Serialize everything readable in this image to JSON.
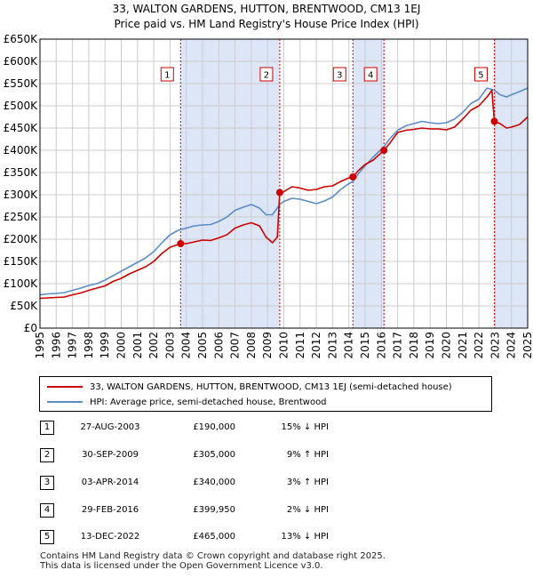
{
  "title_line1": "33, WALTON GARDENS, HUTTON, BRENTWOOD, CM13 1EJ",
  "title_line2": "Price paid vs. HM Land Registry's House Price Index (HPI)",
  "colors": {
    "property": "#cc0000",
    "hpi": "#5b8cc8",
    "shade": "#dde6f6",
    "grid": "#cccccc",
    "vline": "#cc0000"
  },
  "chart_data": {
    "type": "line",
    "title": "Price paid vs. HM Land Registry's House Price Index (HPI)",
    "xlim": [
      1995,
      2025
    ],
    "ylim": [
      0,
      650000
    ],
    "y_ticks": [
      {
        "value": 0,
        "label": "£0"
      },
      {
        "value": 50000,
        "label": "£50K"
      },
      {
        "value": 100000,
        "label": "£100K"
      },
      {
        "value": 150000,
        "label": "£150K"
      },
      {
        "value": 200000,
        "label": "£200K"
      },
      {
        "value": 250000,
        "label": "£250K"
      },
      {
        "value": 300000,
        "label": "£300K"
      },
      {
        "value": 350000,
        "label": "£350K"
      },
      {
        "value": 400000,
        "label": "£400K"
      },
      {
        "value": 450000,
        "label": "£450K"
      },
      {
        "value": 500000,
        "label": "£500K"
      },
      {
        "value": 550000,
        "label": "£550K"
      },
      {
        "value": 600000,
        "label": "£600K"
      },
      {
        "value": 650000,
        "label": "£650K"
      }
    ],
    "x_ticks": [
      1995,
      1996,
      1997,
      1998,
      1999,
      2000,
      2001,
      2002,
      2003,
      2004,
      2005,
      2006,
      2007,
      2008,
      2009,
      2010,
      2011,
      2012,
      2013,
      2014,
      2015,
      2016,
      2017,
      2018,
      2019,
      2020,
      2021,
      2022,
      2023,
      2024,
      2025
    ],
    "shaded_ranges": [
      [
        2003.65,
        2009.75
      ],
      [
        2014.25,
        2016.16
      ],
      [
        2022.95,
        2025
      ]
    ],
    "series": [
      {
        "name": "33, WALTON GARDENS, HUTTON, BRENTWOOD, CM13 1EJ (semi-detached house)",
        "color": "#cc0000",
        "points": [
          [
            1995.0,
            67000
          ],
          [
            1995.5,
            68000
          ],
          [
            1996.0,
            69000
          ],
          [
            1996.5,
            70000
          ],
          [
            1997.0,
            75000
          ],
          [
            1997.5,
            79000
          ],
          [
            1998.0,
            85000
          ],
          [
            1998.5,
            90000
          ],
          [
            1999.0,
            95000
          ],
          [
            1999.5,
            105000
          ],
          [
            2000.0,
            112000
          ],
          [
            2000.5,
            122000
          ],
          [
            2001.0,
            130000
          ],
          [
            2001.5,
            138000
          ],
          [
            2002.0,
            150000
          ],
          [
            2002.5,
            168000
          ],
          [
            2003.0,
            182000
          ],
          [
            2003.65,
            190000
          ],
          [
            2004.0,
            190000
          ],
          [
            2004.5,
            194000
          ],
          [
            2005.0,
            198000
          ],
          [
            2005.5,
            197000
          ],
          [
            2006.0,
            203000
          ],
          [
            2006.5,
            210000
          ],
          [
            2007.0,
            225000
          ],
          [
            2007.5,
            232000
          ],
          [
            2008.0,
            237000
          ],
          [
            2008.5,
            230000
          ],
          [
            2008.9,
            205000
          ],
          [
            2009.3,
            192000
          ],
          [
            2009.6,
            205000
          ],
          [
            2009.75,
            305000
          ],
          [
            2010.0,
            307000
          ],
          [
            2010.5,
            318000
          ],
          [
            2011.0,
            315000
          ],
          [
            2011.5,
            310000
          ],
          [
            2012.0,
            312000
          ],
          [
            2012.5,
            318000
          ],
          [
            2013.0,
            320000
          ],
          [
            2013.5,
            330000
          ],
          [
            2014.0,
            338000
          ],
          [
            2014.25,
            340000
          ],
          [
            2014.6,
            355000
          ],
          [
            2015.0,
            368000
          ],
          [
            2015.5,
            378000
          ],
          [
            2016.16,
            399950
          ],
          [
            2016.5,
            415000
          ],
          [
            2017.0,
            440000
          ],
          [
            2017.5,
            445000
          ],
          [
            2018.0,
            447000
          ],
          [
            2018.5,
            450000
          ],
          [
            2019.0,
            448000
          ],
          [
            2019.5,
            448000
          ],
          [
            2020.0,
            446000
          ],
          [
            2020.5,
            452000
          ],
          [
            2021.0,
            470000
          ],
          [
            2021.5,
            490000
          ],
          [
            2022.0,
            500000
          ],
          [
            2022.5,
            520000
          ],
          [
            2022.8,
            535000
          ],
          [
            2022.95,
            465000
          ],
          [
            2023.3,
            460000
          ],
          [
            2023.7,
            450000
          ],
          [
            2024.0,
            452000
          ],
          [
            2024.5,
            458000
          ],
          [
            2025.0,
            475000
          ]
        ]
      },
      {
        "name": "HPI: Average price, semi-detached house, Brentwood",
        "color": "#5b8cc8",
        "points": [
          [
            1995.0,
            75000
          ],
          [
            1995.5,
            77000
          ],
          [
            1996.0,
            78000
          ],
          [
            1996.5,
            80000
          ],
          [
            1997.0,
            85000
          ],
          [
            1997.5,
            90000
          ],
          [
            1998.0,
            96000
          ],
          [
            1998.5,
            100000
          ],
          [
            1999.0,
            108000
          ],
          [
            1999.5,
            118000
          ],
          [
            2000.0,
            128000
          ],
          [
            2000.5,
            138000
          ],
          [
            2001.0,
            148000
          ],
          [
            2001.5,
            158000
          ],
          [
            2002.0,
            172000
          ],
          [
            2002.5,
            192000
          ],
          [
            2003.0,
            210000
          ],
          [
            2003.5,
            220000
          ],
          [
            2004.0,
            225000
          ],
          [
            2004.5,
            230000
          ],
          [
            2005.0,
            232000
          ],
          [
            2005.5,
            233000
          ],
          [
            2006.0,
            240000
          ],
          [
            2006.5,
            250000
          ],
          [
            2007.0,
            265000
          ],
          [
            2007.5,
            272000
          ],
          [
            2008.0,
            278000
          ],
          [
            2008.5,
            270000
          ],
          [
            2008.9,
            255000
          ],
          [
            2009.3,
            255000
          ],
          [
            2009.75,
            278000
          ],
          [
            2010.0,
            285000
          ],
          [
            2010.5,
            292000
          ],
          [
            2011.0,
            290000
          ],
          [
            2011.5,
            285000
          ],
          [
            2011.8,
            282000
          ],
          [
            2012.0,
            280000
          ],
          [
            2012.5,
            286000
          ],
          [
            2013.0,
            295000
          ],
          [
            2013.5,
            312000
          ],
          [
            2014.0,
            325000
          ],
          [
            2014.25,
            330000
          ],
          [
            2014.6,
            348000
          ],
          [
            2015.0,
            365000
          ],
          [
            2015.5,
            385000
          ],
          [
            2016.16,
            408000
          ],
          [
            2016.5,
            425000
          ],
          [
            2017.0,
            445000
          ],
          [
            2017.5,
            455000
          ],
          [
            2018.0,
            460000
          ],
          [
            2018.5,
            465000
          ],
          [
            2019.0,
            462000
          ],
          [
            2019.5,
            460000
          ],
          [
            2020.0,
            462000
          ],
          [
            2020.5,
            470000
          ],
          [
            2021.0,
            485000
          ],
          [
            2021.5,
            505000
          ],
          [
            2022.0,
            515000
          ],
          [
            2022.5,
            540000
          ],
          [
            2022.95,
            535000
          ],
          [
            2023.3,
            525000
          ],
          [
            2023.7,
            520000
          ],
          [
            2024.0,
            525000
          ],
          [
            2024.5,
            532000
          ],
          [
            2025.0,
            540000
          ]
        ]
      }
    ],
    "sales": [
      {
        "label": "1",
        "x": 2003.65,
        "y": 190000
      },
      {
        "label": "2",
        "x": 2009.75,
        "y": 305000
      },
      {
        "label": "3",
        "x": 2014.25,
        "y": 340000
      },
      {
        "label": "4",
        "x": 2016.16,
        "y": 399950
      },
      {
        "label": "5",
        "x": 2022.95,
        "y": 465000
      }
    ]
  },
  "legend": {
    "property": "33, WALTON GARDENS, HUTTON, BRENTWOOD, CM13 1EJ (semi-detached house)",
    "hpi": "HPI: Average price, semi-detached house, Brentwood"
  },
  "transactions": [
    {
      "num": "1",
      "date": "27-AUG-2003",
      "price": "£190,000",
      "hpi": "15% ↓ HPI"
    },
    {
      "num": "2",
      "date": "30-SEP-2009",
      "price": "£305,000",
      "hpi": "9% ↑ HPI"
    },
    {
      "num": "3",
      "date": "03-APR-2014",
      "price": "£340,000",
      "hpi": "3% ↑ HPI"
    },
    {
      "num": "4",
      "date": "29-FEB-2016",
      "price": "£399,950",
      "hpi": "2% ↓ HPI"
    },
    {
      "num": "5",
      "date": "13-DEC-2022",
      "price": "£465,000",
      "hpi": "13% ↓ HPI"
    }
  ],
  "footer": {
    "line1": "Contains HM Land Registry data © Crown copyright and database right 2025.",
    "line2": "This data is licensed under the Open Government Licence v3.0."
  }
}
